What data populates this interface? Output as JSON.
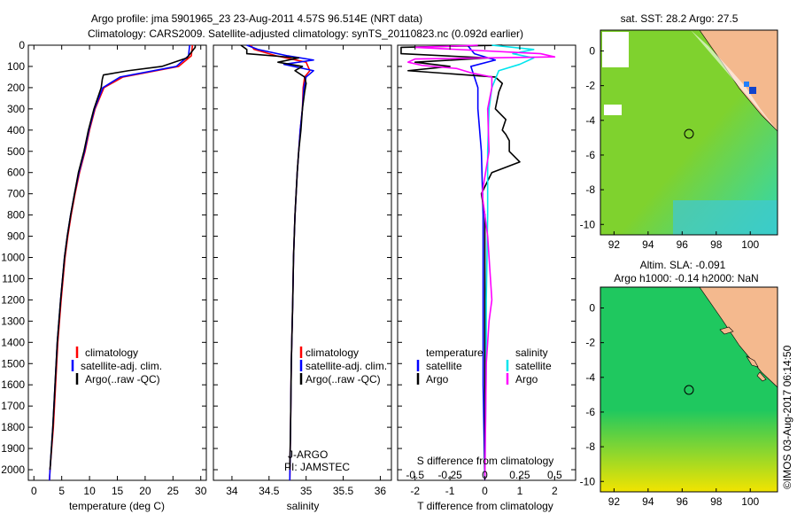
{
  "title": {
    "line1": "Argo profile: jma 5901965_23 23-Aug-2011 4.57S 96.514E (NRT data)",
    "line2": "Climatology: CARS2009. Satellite-adjusted climatology: synTS_20110823.nc (0.092d earlier)"
  },
  "side_label": "©IMOS 03-Aug-2017 06:14:50",
  "colors": {
    "climatology": "#ff0000",
    "satellite": "#0000ff",
    "argo": "#000000",
    "satellite_s": "#00e5ee",
    "argo_s": "#ff00ff",
    "ocean_sst_a": "#7fd22e",
    "ocean_sst_b": "#2fd8b0",
    "land": "#f4b98e",
    "ocean_sla_a": "#1fc85f",
    "ocean_sla_b": "#f2e400"
  },
  "chart_data": [
    {
      "type": "line",
      "name": "temperature",
      "xlabel": "temperature (deg C)",
      "xlim": [
        -1,
        31
      ],
      "ylim": [
        2050,
        0
      ],
      "xticks": [
        0,
        5,
        10,
        15,
        20,
        25,
        30
      ],
      "yticks": [
        0,
        100,
        200,
        300,
        400,
        500,
        600,
        700,
        800,
        900,
        1000,
        1100,
        1200,
        1300,
        1400,
        1500,
        1600,
        1700,
        1800,
        1900,
        2000
      ],
      "legend": [
        "climatology",
        "satellite-adj. clim.",
        "Argo(..raw -QC)"
      ],
      "series": [
        {
          "name": "climatology",
          "color": "#ff0000",
          "depth": [
            0,
            50,
            100,
            150,
            200,
            300,
            400,
            500,
            600,
            700,
            800,
            900,
            1000,
            1200,
            1400,
            1600,
            1800,
            2000,
            2050
          ],
          "values": [
            28.5,
            28.3,
            26,
            16,
            12.6,
            11,
            10,
            9.2,
            8.2,
            7.4,
            6.7,
            6.1,
            5.6,
            4.9,
            4.3,
            3.9,
            3.5,
            2.9,
            2.8
          ]
        },
        {
          "name": "satellite-adj. clim.",
          "color": "#0000ff",
          "depth": [
            0,
            50,
            100,
            150,
            200,
            300,
            400,
            500,
            600,
            700,
            800,
            900,
            1000,
            1200,
            1400,
            1600,
            1800,
            2000,
            2050
          ],
          "values": [
            28.0,
            27.8,
            25.6,
            15.5,
            12.4,
            10.9,
            9.9,
            9.1,
            8.1,
            7.3,
            6.6,
            6.0,
            5.5,
            4.8,
            4.2,
            3.8,
            3.4,
            2.9,
            2.8
          ]
        },
        {
          "name": "Argo(..raw -QC)",
          "color": "#000000",
          "depth": [
            0,
            10,
            60,
            100,
            120,
            140,
            160,
            200,
            300,
            400,
            500,
            600,
            700,
            800,
            900,
            1000,
            1200,
            1400,
            1600,
            1800,
            2000
          ],
          "values": [
            29,
            29,
            27.5,
            23,
            17,
            12.5,
            12.3,
            12.1,
            10.8,
            9.8,
            9.0,
            8.0,
            7.3,
            6.6,
            6.0,
            5.5,
            4.8,
            4.2,
            3.8,
            3.4,
            2.9
          ]
        }
      ]
    },
    {
      "type": "line",
      "name": "salinity",
      "xlabel": "salinity",
      "xlim": [
        33.75,
        36.15
      ],
      "ylim": [
        2050,
        0
      ],
      "xticks": [
        34,
        34.5,
        35,
        35.5,
        36
      ],
      "legend": [
        "climatology",
        "satellite-adj. clim.",
        "Argo(..raw -QC)"
      ],
      "annotation": [
        "J-ARGO",
        "PI: JAMSTEC"
      ],
      "series": [
        {
          "name": "climatology",
          "color": "#ff0000",
          "depth": [
            0,
            20,
            50,
            80,
            120,
            150,
            200,
            300,
            400,
            500,
            600,
            800,
            1000,
            1200,
            1500,
            1800,
            2050
          ],
          "values": [
            34.25,
            34.3,
            34.6,
            35.0,
            35.05,
            34.98,
            34.96,
            34.95,
            34.92,
            34.9,
            34.88,
            34.85,
            34.83,
            34.82,
            34.8,
            34.79,
            34.78
          ]
        },
        {
          "name": "satellite-adj. clim.",
          "color": "#0000ff",
          "depth": [
            0,
            20,
            50,
            70,
            90,
            120,
            150,
            200,
            300,
            400,
            500,
            600,
            800,
            1000,
            1200,
            1500,
            1800,
            2050
          ],
          "values": [
            34.2,
            34.35,
            34.75,
            35.1,
            34.7,
            35.1,
            35.0,
            34.97,
            34.95,
            34.92,
            34.9,
            34.88,
            34.85,
            34.83,
            34.82,
            34.8,
            34.79,
            34.78
          ]
        },
        {
          "name": "Argo(..raw -QC)",
          "color": "#000000",
          "depth": [
            0,
            20,
            40,
            60,
            80,
            100,
            120,
            150,
            180,
            220,
            300,
            400,
            500,
            600,
            800,
            1000,
            1200,
            1500,
            1800,
            2000
          ],
          "values": [
            34.12,
            34.2,
            34.2,
            34.9,
            34.62,
            34.95,
            34.85,
            34.98,
            35.0,
            34.98,
            34.95,
            34.93,
            34.9,
            34.88,
            34.85,
            34.83,
            34.82,
            34.8,
            34.79,
            34.78
          ]
        }
      ]
    },
    {
      "type": "line",
      "name": "difference",
      "xlabel": "T difference from climatology",
      "x2label": "S difference from climatology",
      "xlim": [
        -2.5,
        2.6
      ],
      "ylim": [
        2050,
        0
      ],
      "xticks": [
        -2,
        -1,
        0,
        1,
        2
      ],
      "x2ticks": [
        -0.5,
        -0.25,
        0,
        0.25,
        0.5
      ],
      "legend_temperature_title": "temperature",
      "legend_salinity_title": "salinity",
      "legend_temperature": [
        "satellite",
        "Argo"
      ],
      "legend_salinity": [
        "satellite",
        "Argo"
      ],
      "series": [
        {
          "name": "T satellite",
          "color": "#0000ff",
          "depth": [
            0,
            40,
            70,
            100,
            150,
            200,
            300,
            500,
            800,
            1200,
            1600,
            2050
          ],
          "values": [
            -0.5,
            -0.3,
            0.3,
            -0.4,
            -0.3,
            -0.2,
            -0.2,
            -0.1,
            -0.05,
            -0.05,
            -0.05,
            0
          ]
        },
        {
          "name": "T Argo",
          "color": "#000000",
          "depth": [
            0,
            10,
            40,
            60,
            80,
            100,
            120,
            150,
            180,
            220,
            300,
            350,
            400,
            420,
            450,
            500,
            550,
            600,
            700,
            800,
            1000,
            1200,
            1500,
            1800,
            2000
          ],
          "values": [
            0.5,
            -2.4,
            -2.4,
            0.1,
            -2.0,
            -1.0,
            -2.2,
            0.3,
            0.5,
            0.4,
            0.3,
            0.6,
            0.5,
            0.6,
            0.7,
            0.7,
            1.0,
            0.2,
            -0.1,
            0,
            0,
            0,
            0,
            0,
            0
          ]
        },
        {
          "name": "S satellite",
          "color": "#00e5ee",
          "depth": [
            0,
            20,
            40,
            60,
            90,
            120,
            200,
            300,
            500,
            800,
            1200,
            1500,
            2050
          ],
          "values": [
            0.05,
            0.35,
            0.2,
            0.35,
            0.25,
            0.1,
            0.05,
            0.03,
            0.02,
            0.02,
            0.01,
            0.01,
            0.0
          ]
        },
        {
          "name": "S Argo",
          "color": "#ff00ff",
          "depth": [
            0,
            10,
            40,
            55,
            65,
            80,
            95,
            110,
            130,
            150,
            200,
            300,
            500,
            700,
            900,
            1200,
            1300,
            1500,
            2050
          ],
          "values": [
            -0.05,
            -0.5,
            0.4,
            0.5,
            -0.5,
            -0.55,
            -0.45,
            -0.2,
            -0.1,
            0.05,
            0.05,
            0.02,
            0.03,
            -0.02,
            0.02,
            0.05,
            0.03,
            0.01,
            0.0
          ]
        }
      ]
    },
    {
      "type": "heatmap",
      "name": "sst_map",
      "title": "sat. SST: 28.2 Argo: 27.5",
      "xticks": [
        92,
        94,
        96,
        98,
        100
      ],
      "yticks": [
        0,
        -2,
        -4,
        -6,
        -8,
        -10
      ],
      "xlim": [
        91.2,
        101.6
      ],
      "ylim": [
        -10.6,
        1.2
      ],
      "argo_position": [
        96.514,
        -4.57
      ]
    },
    {
      "type": "heatmap",
      "name": "sla_map",
      "title": "Altim. SLA: -0.091",
      "subtitle": "Argo h1000: -0.14 h2000: NaN",
      "xticks": [
        92,
        94,
        96,
        98,
        100
      ],
      "yticks": [
        0,
        -2,
        -4,
        -6,
        -8,
        -10
      ],
      "xlim": [
        91.2,
        101.6
      ],
      "ylim": [
        -10.6,
        1.2
      ],
      "argo_position": [
        96.514,
        -4.57
      ]
    }
  ]
}
